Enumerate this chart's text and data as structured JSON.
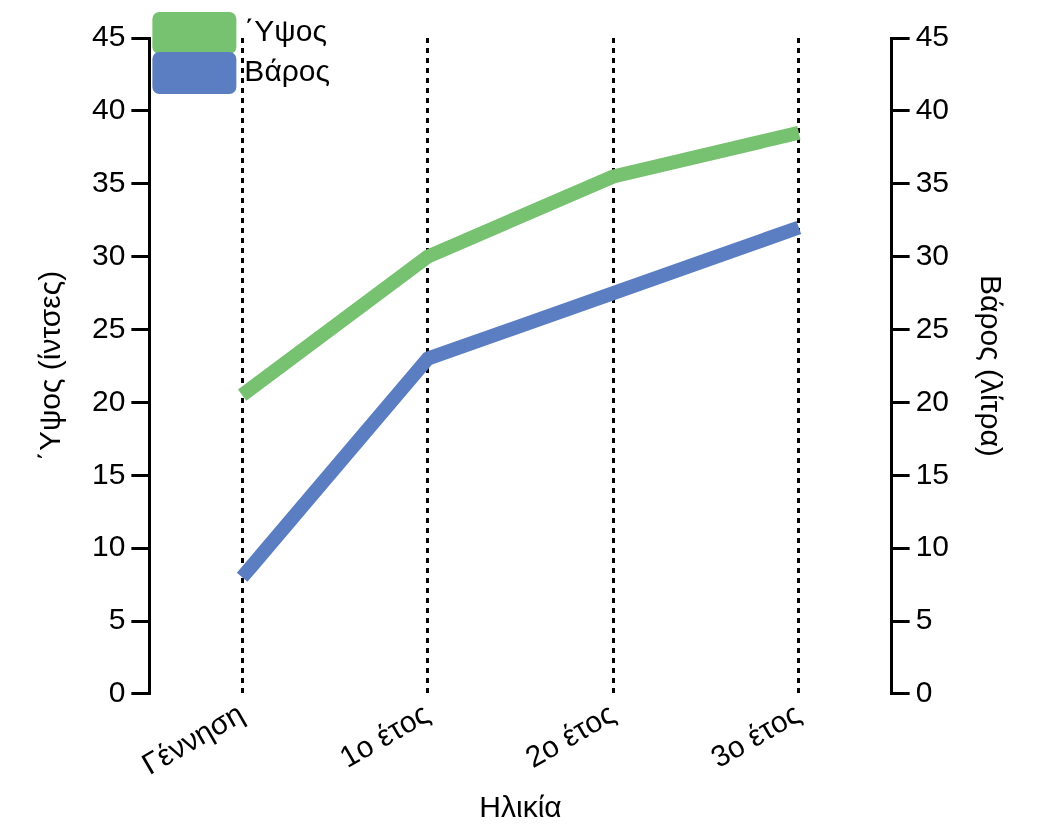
{
  "chart_data": {
    "type": "line",
    "xlabel": "Ηλικία",
    "ylabel": "΄Υψος (ίντσες)",
    "y2label": "Βάρος (λίτρα)",
    "categories": [
      "Γέννηση",
      "1ο έτος",
      "2ο έτος",
      "3ο έτος"
    ],
    "series": [
      {
        "name": "΄Υψος",
        "color": "#77c270",
        "values": [
          20.5,
          30,
          35.5,
          38.5
        ]
      },
      {
        "name": "Βάρος",
        "color": "#5b7ec2",
        "values": [
          8,
          23,
          27.5,
          32
        ],
        "axis": "y2"
      }
    ],
    "ylim": [
      0,
      45
    ],
    "yticks": [
      0,
      5,
      10,
      15,
      20,
      25,
      30,
      35,
      40,
      45
    ],
    "y2lim": [
      0,
      45
    ],
    "y2ticks": [
      0,
      5,
      10,
      15,
      20,
      25,
      30,
      35,
      40,
      45
    ],
    "grid": "x",
    "legend": "top left",
    "marker": "none",
    "line_style": "solid"
  }
}
